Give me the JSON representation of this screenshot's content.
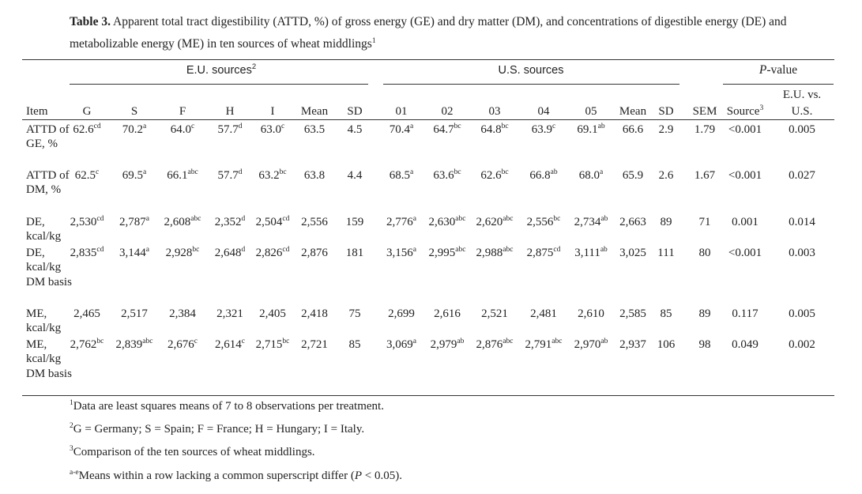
{
  "caption": {
    "label": "Table 3.",
    "text": "Apparent total tract digestibility (ATTD, %) of gross energy (GE) and dry matter (DM), and concentrations of digestible energy (DE) and metabolizable energy (ME) in ten sources of wheat middlings",
    "sup": "1"
  },
  "groups": {
    "eu": "E.U. sources",
    "eu_sup": "2",
    "us": "U.S. sources",
    "pvalue_italic": "P",
    "pvalue_rest": "-value"
  },
  "headers": {
    "item": "Item",
    "eu_cols": [
      "G",
      "S",
      "F",
      "H",
      "I",
      "Mean",
      "SD"
    ],
    "us_cols": [
      "01",
      "02",
      "03",
      "04",
      "05",
      "Mean",
      "SD"
    ],
    "sem": "SEM",
    "source": "Source",
    "source_sup": "3",
    "euvsus_line1": "E.U. vs.",
    "euvsus_line2": "U.S."
  },
  "rows": [
    {
      "label": "ATTD of GE, %",
      "eu": [
        [
          "62.6",
          "cd"
        ],
        [
          "70.2",
          "a"
        ],
        [
          "64.0",
          "c"
        ],
        [
          "57.7",
          "d"
        ],
        [
          "63.0",
          "c"
        ],
        [
          "63.5",
          ""
        ],
        [
          "4.5",
          ""
        ]
      ],
      "us": [
        [
          "70.4",
          "a"
        ],
        [
          "64.7",
          "bc"
        ],
        [
          "64.8",
          "bc"
        ],
        [
          "63.9",
          "c"
        ],
        [
          "69.1",
          "ab"
        ],
        [
          "66.6",
          ""
        ],
        [
          "2.9",
          ""
        ]
      ],
      "sem": "1.79",
      "source": "<0.001",
      "euvsus": "0.005"
    },
    {
      "label": "ATTD of DM, %",
      "eu": [
        [
          "62.5",
          "c"
        ],
        [
          "69.5",
          "a"
        ],
        [
          "66.1",
          "abc"
        ],
        [
          "57.7",
          "d"
        ],
        [
          "63.2",
          "bc"
        ],
        [
          "63.8",
          ""
        ],
        [
          "4.4",
          ""
        ]
      ],
      "us": [
        [
          "68.5",
          "a"
        ],
        [
          "63.6",
          "bc"
        ],
        [
          "62.6",
          "bc"
        ],
        [
          "66.8",
          "ab"
        ],
        [
          "68.0",
          "a"
        ],
        [
          "65.9",
          ""
        ],
        [
          "2.6",
          ""
        ]
      ],
      "sem": "1.67",
      "source": "<0.001",
      "euvsus": "0.027"
    },
    {
      "label": "DE, kcal/kg",
      "eu": [
        [
          "2,530",
          "cd"
        ],
        [
          "2,787",
          "a"
        ],
        [
          "2,608",
          "abc"
        ],
        [
          "2,352",
          "d"
        ],
        [
          "2,504",
          "cd"
        ],
        [
          "2,556",
          ""
        ],
        [
          "159",
          ""
        ]
      ],
      "us": [
        [
          "2,776",
          "a"
        ],
        [
          "2,630",
          "abc"
        ],
        [
          "2,620",
          "abc"
        ],
        [
          "2,556",
          "bc"
        ],
        [
          "2,734",
          "ab"
        ],
        [
          "2,663",
          ""
        ],
        [
          "89",
          ""
        ]
      ],
      "sem": "71",
      "source": "0.001",
      "euvsus": "0.014"
    },
    {
      "label": "DE, kcal/kg DM basis",
      "eu": [
        [
          "2,835",
          "cd"
        ],
        [
          "3,144",
          "a"
        ],
        [
          "2,928",
          "bc"
        ],
        [
          "2,648",
          "d"
        ],
        [
          "2,826",
          "cd"
        ],
        [
          "2,876",
          ""
        ],
        [
          "181",
          ""
        ]
      ],
      "us": [
        [
          "3,156",
          "a"
        ],
        [
          "2,995",
          "abc"
        ],
        [
          "2,988",
          "abc"
        ],
        [
          "2,875",
          "cd"
        ],
        [
          "3,111",
          "ab"
        ],
        [
          "3,025",
          ""
        ],
        [
          "111",
          ""
        ]
      ],
      "sem": "80",
      "source": "<0.001",
      "euvsus": "0.003"
    },
    {
      "label": "ME, kcal/kg",
      "eu": [
        [
          "2,465",
          ""
        ],
        [
          "2,517",
          ""
        ],
        [
          "2,384",
          ""
        ],
        [
          "2,321",
          ""
        ],
        [
          "2,405",
          ""
        ],
        [
          "2,418",
          ""
        ],
        [
          "75",
          ""
        ]
      ],
      "us": [
        [
          "2,699",
          ""
        ],
        [
          "2,616",
          ""
        ],
        [
          "2,521",
          ""
        ],
        [
          "2,481",
          ""
        ],
        [
          "2,610",
          ""
        ],
        [
          "2,585",
          ""
        ],
        [
          "85",
          ""
        ]
      ],
      "sem": "89",
      "source": "0.117",
      "euvsus": "0.005"
    },
    {
      "label": "ME, kcal/kg DM basis",
      "eu": [
        [
          "2,762",
          "bc"
        ],
        [
          "2,839",
          "abc"
        ],
        [
          "2,676",
          "c"
        ],
        [
          "2,614",
          "c"
        ],
        [
          "2,715",
          "bc"
        ],
        [
          "2,721",
          ""
        ],
        [
          "85",
          ""
        ]
      ],
      "us": [
        [
          "3,069",
          "a"
        ],
        [
          "2,979",
          "ab"
        ],
        [
          "2,876",
          "abc"
        ],
        [
          "2,791",
          "abc"
        ],
        [
          "2,970",
          "ab"
        ],
        [
          "2,937",
          ""
        ],
        [
          "106",
          ""
        ]
      ],
      "sem": "98",
      "source": "0.049",
      "euvsus": "0.002"
    }
  ],
  "footnotes": [
    {
      "sup": "1",
      "text": "Data are least squares means of 7 to 8 observations per treatment."
    },
    {
      "sup": "2",
      "text": "G = Germany; S = Spain; F = France; H = Hungary; I = Italy."
    },
    {
      "sup": "3",
      "text": "Comparison of the ten sources of wheat middlings."
    },
    {
      "sup": "a-e",
      "text": "Means within a row lacking a common superscript differ (",
      "italic": "P",
      "tail": " < 0.05)."
    }
  ]
}
